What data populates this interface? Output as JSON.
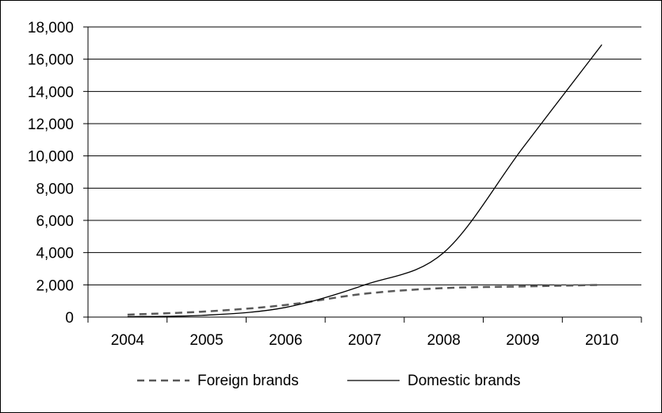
{
  "chart_data": {
    "type": "line",
    "title": "",
    "xlabel": "",
    "ylabel": "",
    "x": [
      "2004",
      "2005",
      "2006",
      "2007",
      "2008",
      "2009",
      "2010"
    ],
    "ylim": [
      0,
      18000
    ],
    "yticks": [
      0,
      2000,
      4000,
      6000,
      8000,
      10000,
      12000,
      14000,
      16000,
      18000
    ],
    "ytick_labels": [
      "0",
      "2,000",
      "4,000",
      "6,000",
      "8,000",
      "10,000",
      "12,000",
      "14,000",
      "16,000",
      "18,000"
    ],
    "grid": "horizontal",
    "legend_position": "bottom",
    "series": [
      {
        "name": "Foreign brands",
        "style": "dashed",
        "color": "#595959",
        "values": [
          150,
          350,
          750,
          1450,
          1800,
          1900,
          2000
        ]
      },
      {
        "name": "Domestic brands",
        "style": "solid",
        "color": "#000000",
        "values": [
          30,
          120,
          600,
          2000,
          4000,
          10500,
          16900
        ]
      }
    ]
  }
}
